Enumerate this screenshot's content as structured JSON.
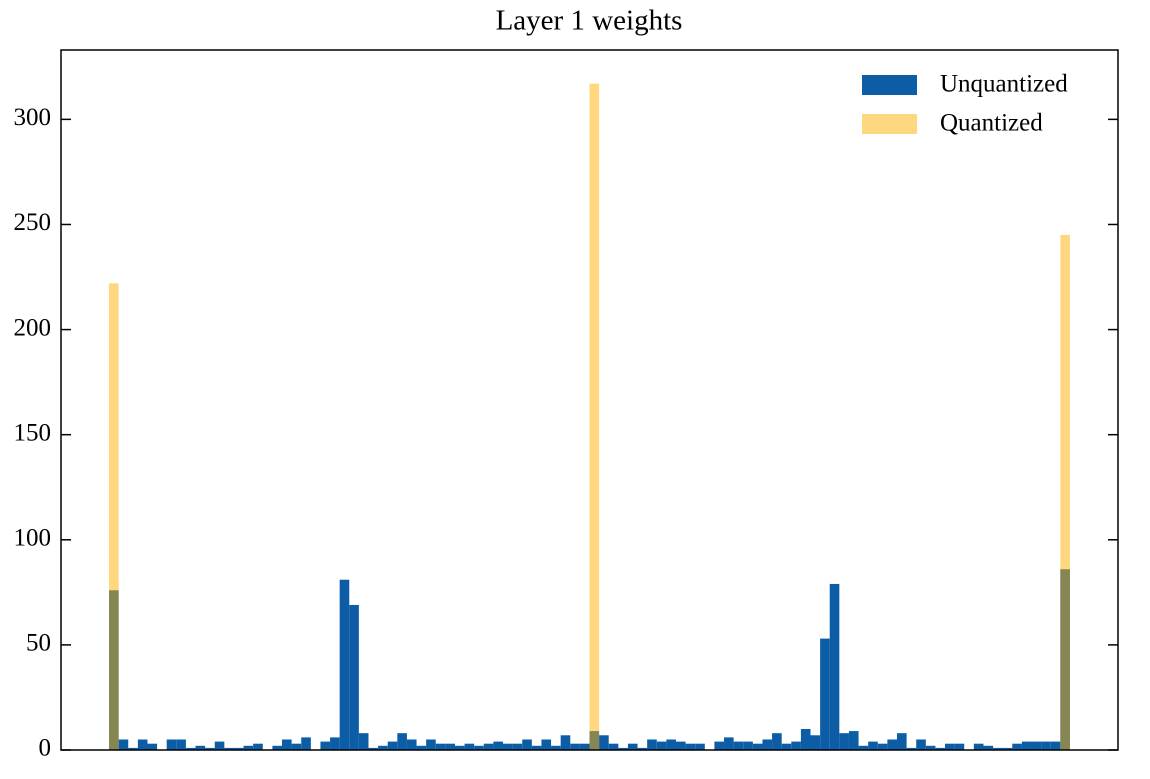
{
  "chart_data": {
    "type": "histogram",
    "title": "Layer 1 weights",
    "bins": [
      -1,
      -0.98,
      -0.96,
      -0.94,
      -0.92,
      -0.9,
      -0.88,
      -0.86,
      -0.84,
      -0.82,
      -0.8,
      -0.78,
      -0.76,
      -0.74,
      -0.72,
      -0.7,
      -0.68,
      -0.66,
      -0.64,
      -0.62,
      -0.6,
      -0.58,
      -0.56,
      -0.54,
      -0.52,
      -0.5,
      -0.48,
      -0.46,
      -0.44,
      -0.42,
      -0.4,
      -0.38,
      -0.36,
      -0.34,
      -0.32,
      -0.3,
      -0.28,
      -0.26,
      -0.24,
      -0.22,
      -0.2,
      -0.18,
      -0.16,
      -0.14,
      -0.12,
      -0.1,
      -0.08,
      -0.06,
      -0.04,
      -0.02,
      0,
      0.02,
      0.04,
      0.06,
      0.08,
      0.1,
      0.12,
      0.14,
      0.16,
      0.18,
      0.2,
      0.22,
      0.24,
      0.26,
      0.28,
      0.3,
      0.32,
      0.34,
      0.36,
      0.38,
      0.4,
      0.42,
      0.44,
      0.46,
      0.48,
      0.5,
      0.52,
      0.54,
      0.56,
      0.58,
      0.6,
      0.62,
      0.64,
      0.66,
      0.68,
      0.7,
      0.72,
      0.74,
      0.76,
      0.78,
      0.8,
      0.82,
      0.84,
      0.86,
      0.88,
      0.9,
      0.92,
      0.94,
      0.96,
      0.98,
      1
    ],
    "series": [
      {
        "name": "Unquantized",
        "color": "#0C5DA5",
        "opacity": 1,
        "values": [
          76,
          5,
          1,
          5,
          3,
          0,
          5,
          5,
          1,
          2,
          1,
          4,
          1,
          1,
          2,
          3,
          0,
          2,
          5,
          3,
          6,
          0,
          4,
          6,
          81,
          69,
          8,
          1,
          2,
          4,
          8,
          5,
          2,
          5,
          3,
          3,
          2,
          3,
          2,
          3,
          4,
          3,
          3,
          5,
          2,
          5,
          2,
          7,
          3,
          3,
          9,
          7,
          3,
          1,
          3,
          1,
          5,
          4,
          5,
          4,
          3,
          3,
          0,
          4,
          6,
          4,
          4,
          3,
          5,
          8,
          3,
          4,
          10,
          7,
          53,
          79,
          8,
          9,
          2,
          4,
          3,
          5,
          8,
          1,
          5,
          2,
          1,
          3,
          3,
          0,
          3,
          2,
          1,
          1,
          3,
          4,
          4,
          4,
          4,
          86
        ]
      },
      {
        "name": "Quantized",
        "color": "#FFB000",
        "opacity": 0.5,
        "values": [
          222,
          0,
          0,
          0,
          0,
          0,
          0,
          0,
          0,
          0,
          0,
          0,
          0,
          0,
          0,
          0,
          0,
          0,
          0,
          0,
          0,
          0,
          0,
          0,
          0,
          0,
          0,
          0,
          0,
          0,
          0,
          0,
          0,
          0,
          0,
          0,
          0,
          0,
          0,
          0,
          0,
          0,
          0,
          0,
          0,
          0,
          0,
          0,
          0,
          0,
          317,
          0,
          0,
          0,
          0,
          0,
          0,
          0,
          0,
          0,
          0,
          0,
          0,
          0,
          0,
          0,
          0,
          0,
          0,
          0,
          0,
          0,
          0,
          0,
          0,
          0,
          0,
          0,
          0,
          0,
          0,
          0,
          0,
          0,
          0,
          0,
          0,
          0,
          0,
          0,
          0,
          0,
          0,
          0,
          0,
          0,
          0,
          0,
          0,
          245
        ]
      }
    ],
    "xlim": [
      -1.1,
      1.1
    ],
    "ylim": [
      0,
      333
    ],
    "yticks": [
      0,
      50,
      100,
      150,
      200,
      250,
      300
    ],
    "grid": false,
    "legend": "upper right"
  }
}
